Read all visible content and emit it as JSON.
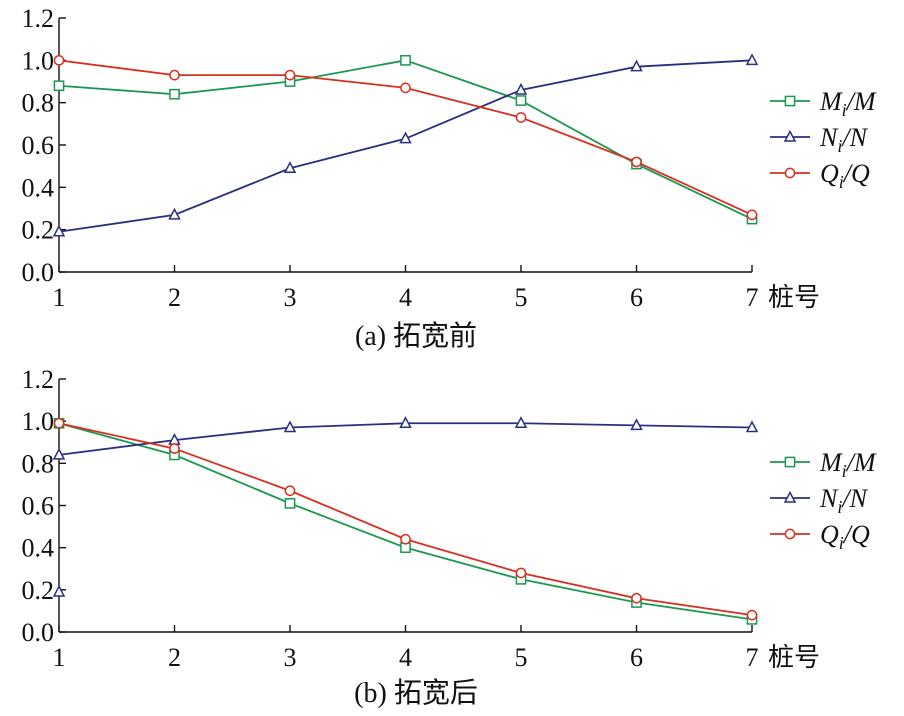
{
  "chart_data": [
    {
      "type": "line",
      "title": "",
      "caption": "(a) 拓宽前",
      "xlabel": "桩号",
      "ylabel": "",
      "x": [
        1,
        2,
        3,
        4,
        5,
        6,
        7
      ],
      "xticks": [
        "1",
        "2",
        "3",
        "4",
        "5",
        "6",
        "7"
      ],
      "ylim": [
        0,
        1.2
      ],
      "yticks": [
        "0.0",
        "0.2",
        "0.4",
        "0.6",
        "0.8",
        "1.0",
        "1.2"
      ],
      "grid": false,
      "legend_position": "right",
      "series": [
        {
          "name": "Mi/M",
          "marker": "square",
          "color": "#1a9850",
          "values": [
            0.88,
            0.84,
            0.9,
            1.0,
            0.81,
            0.51,
            0.25
          ]
        },
        {
          "name": "Ni/N",
          "marker": "triangle",
          "color": "#2b2f7f",
          "values": [
            0.19,
            0.27,
            0.49,
            0.63,
            0.86,
            0.97,
            1.0
          ]
        },
        {
          "name": "Qi/Q",
          "marker": "circle",
          "color": "#d7301f",
          "values": [
            1.0,
            0.93,
            0.93,
            0.87,
            0.73,
            0.52,
            0.27
          ]
        }
      ]
    },
    {
      "type": "line",
      "title": "",
      "caption": "(b) 拓宽后",
      "xlabel": "桩号",
      "ylabel": "",
      "x": [
        1,
        2,
        3,
        4,
        5,
        6,
        7
      ],
      "xticks": [
        "1",
        "2",
        "3",
        "4",
        "5",
        "6",
        "7"
      ],
      "ylim": [
        0,
        1.2
      ],
      "yticks": [
        "0.0",
        "0.2",
        "0.4",
        "0.6",
        "0.8",
        "1.0",
        "1.2"
      ],
      "grid": false,
      "legend_position": "right",
      "series": [
        {
          "name": "Mi/M",
          "marker": "square",
          "color": "#1a9850",
          "values": [
            0.99,
            0.84,
            0.61,
            0.4,
            0.25,
            0.14,
            0.06
          ]
        },
        {
          "name": "Ni/N",
          "marker": "triangle",
          "color": "#2b2f7f",
          "values": [
            0.84,
            0.91,
            0.97,
            0.99,
            0.99,
            0.98,
            0.97
          ]
        },
        {
          "name": "Qi/Q",
          "marker": "circle",
          "color": "#d7301f",
          "values": [
            0.99,
            0.87,
            0.67,
            0.44,
            0.28,
            0.16,
            0.08
          ]
        }
      ],
      "extra_points": [
        {
          "series": "Ni/N",
          "x": 1,
          "y": 0.19
        }
      ]
    }
  ]
}
